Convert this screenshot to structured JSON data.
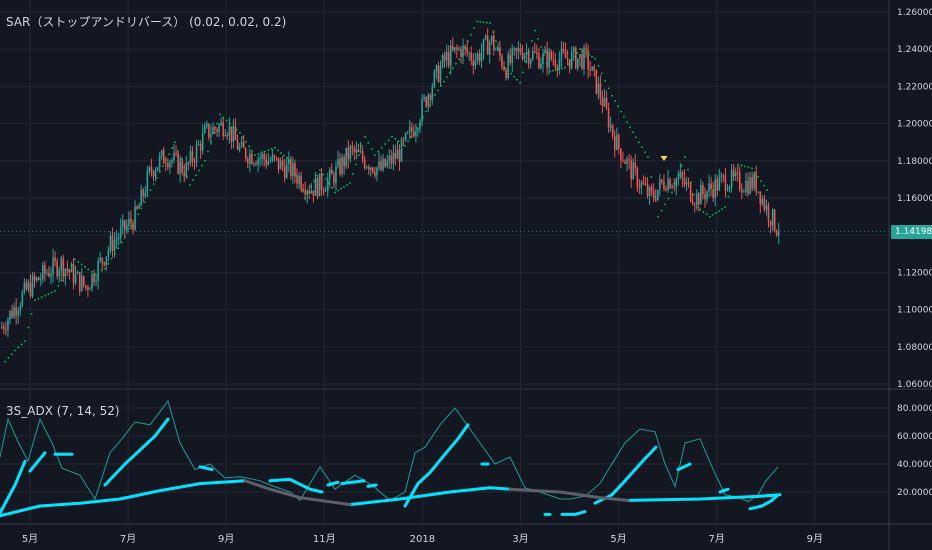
{
  "indicators": {
    "main_label": "SAR（ストップアンドリバース） (0.02, 0.02, 0.2)",
    "sub_label": "3S_ADX (7, 14, 52)"
  },
  "last_price": "1.14198",
  "colors": {
    "background": "#131722",
    "grid": "#232733",
    "up_candle": "#26a69a",
    "down_candle": "#ef5350",
    "sar_dots": "#00c853",
    "adx_thick": "#00e5ff",
    "adx_thin": "#1f9e94",
    "adx_gray": "#5d606b",
    "axis_text": "#d1d4dc",
    "marker": "#ffd54f"
  },
  "chart_data": [
    {
      "type": "candlestick",
      "title": "",
      "x_ticks": [
        "5月",
        "7月",
        "9月",
        "11月",
        "2018",
        "3月",
        "5月",
        "7月",
        "9月"
      ],
      "y_ticks": [
        "1.06000",
        "1.08000",
        "1.10000",
        "1.12000",
        "1.14000",
        "1.16000",
        "1.18000",
        "1.20000",
        "1.22000",
        "1.24000",
        "1.26000"
      ],
      "ylim": [
        1.06,
        1.26
      ],
      "last_value": 1.14198,
      "anchor_closes": [
        [
          0,
          1.09
        ],
        [
          25,
          1.11
        ],
        [
          45,
          1.12
        ],
        [
          60,
          1.125
        ],
        [
          85,
          1.112
        ],
        [
          110,
          1.135
        ],
        [
          135,
          1.15
        ],
        [
          150,
          1.175
        ],
        [
          165,
          1.183
        ],
        [
          185,
          1.175
        ],
        [
          205,
          1.195
        ],
        [
          225,
          1.2
        ],
        [
          240,
          1.185
        ],
        [
          270,
          1.18
        ],
        [
          290,
          1.175
        ],
        [
          310,
          1.165
        ],
        [
          330,
          1.17
        ],
        [
          350,
          1.185
        ],
        [
          380,
          1.175
        ],
        [
          400,
          1.185
        ],
        [
          415,
          1.2
        ],
        [
          430,
          1.22
        ],
        [
          445,
          1.235
        ],
        [
          460,
          1.24
        ],
        [
          475,
          1.235
        ],
        [
          490,
          1.245
        ],
        [
          505,
          1.23
        ],
        [
          520,
          1.24
        ],
        [
          540,
          1.235
        ],
        [
          560,
          1.235
        ],
        [
          585,
          1.235
        ],
        [
          600,
          1.215
        ],
        [
          615,
          1.19
        ],
        [
          630,
          1.175
        ],
        [
          650,
          1.16
        ],
        [
          665,
          1.17
        ],
        [
          680,
          1.17
        ],
        [
          695,
          1.16
        ],
        [
          710,
          1.165
        ],
        [
          725,
          1.17
        ],
        [
          740,
          1.168
        ],
        [
          755,
          1.168
        ],
        [
          765,
          1.155
        ],
        [
          778,
          1.142
        ]
      ],
      "sar_dots": [
        [
          5,
          1.072
        ],
        [
          15,
          1.078
        ],
        [
          25,
          1.083
        ],
        [
          35,
          1.105
        ],
        [
          55,
          1.11
        ],
        [
          75,
          1.127
        ],
        [
          95,
          1.119
        ],
        [
          105,
          1.122
        ],
        [
          115,
          1.13
        ],
        [
          135,
          1.148
        ],
        [
          160,
          1.174
        ],
        [
          175,
          1.19
        ],
        [
          190,
          1.167
        ],
        [
          205,
          1.18
        ],
        [
          220,
          1.205
        ],
        [
          240,
          1.195
        ],
        [
          255,
          1.183
        ],
        [
          275,
          1.187
        ],
        [
          290,
          1.18
        ],
        [
          305,
          1.16
        ],
        [
          320,
          1.175
        ],
        [
          335,
          1.163
        ],
        [
          350,
          1.168
        ],
        [
          365,
          1.193
        ],
        [
          375,
          1.183
        ],
        [
          392,
          1.193
        ],
        [
          405,
          1.188
        ],
        [
          420,
          1.2
        ],
        [
          432,
          1.213
        ],
        [
          447,
          1.225
        ],
        [
          462,
          1.237
        ],
        [
          477,
          1.255
        ],
        [
          490,
          1.254
        ],
        [
          505,
          1.23
        ],
        [
          520,
          1.222
        ],
        [
          535,
          1.25
        ],
        [
          550,
          1.228
        ],
        [
          565,
          1.23
        ],
        [
          580,
          1.24
        ],
        [
          595,
          1.235
        ],
        [
          612,
          1.215
        ],
        [
          630,
          1.198
        ],
        [
          648,
          1.182
        ],
        [
          658,
          1.15
        ],
        [
          672,
          1.163
        ],
        [
          685,
          1.182
        ],
        [
          697,
          1.155
        ],
        [
          710,
          1.15
        ],
        [
          725,
          1.155
        ],
        [
          738,
          1.178
        ],
        [
          752,
          1.176
        ],
        [
          770,
          1.162
        ]
      ],
      "marker": [
        664,
        1.181
      ]
    },
    {
      "type": "line",
      "title": "",
      "y_ticks": [
        "20.0000",
        "40.0000",
        "60.0000",
        "80.0000"
      ],
      "ylim": [
        0,
        90
      ],
      "series": [
        {
          "style": "thin",
          "points": [
            [
              0,
              45
            ],
            [
              8,
              72
            ],
            [
              18,
              56
            ],
            [
              28,
              42
            ],
            [
              40,
              72
            ],
            [
              52,
              55
            ],
            [
              62,
              37
            ],
            [
              80,
              32
            ],
            [
              95,
              15
            ],
            [
              110,
              48
            ],
            [
              122,
              58
            ],
            [
              135,
              70
            ],
            [
              150,
              68
            ],
            [
              168,
              85
            ],
            [
              180,
              55
            ],
            [
              195,
              36
            ],
            [
              210,
              40
            ],
            [
              225,
              30
            ],
            [
              240,
              31
            ],
            [
              260,
              28
            ],
            [
              270,
              25
            ],
            [
              290,
              20
            ],
            [
              300,
              14
            ],
            [
              320,
              38
            ],
            [
              335,
              22
            ],
            [
              355,
              32
            ],
            [
              372,
              25
            ],
            [
              390,
              14
            ],
            [
              405,
              20
            ],
            [
              415,
              48
            ],
            [
              425,
              52
            ],
            [
              440,
              68
            ],
            [
              455,
              80
            ],
            [
              465,
              70
            ],
            [
              480,
              55
            ],
            [
              495,
              40
            ],
            [
              510,
              45
            ],
            [
              525,
              23
            ],
            [
              540,
              20
            ],
            [
              560,
              15
            ],
            [
              570,
              15
            ],
            [
              585,
              17
            ],
            [
              600,
              26
            ],
            [
              610,
              38
            ],
            [
              625,
              55
            ],
            [
              640,
              65
            ],
            [
              655,
              63
            ],
            [
              665,
              40
            ],
            [
              675,
              24
            ],
            [
              685,
              55
            ],
            [
              700,
              58
            ],
            [
              712,
              38
            ],
            [
              725,
              18
            ],
            [
              740,
              16
            ],
            [
              748,
              13
            ],
            [
              758,
              18
            ],
            [
              766,
              28
            ],
            [
              778,
              38
            ]
          ]
        },
        {
          "style": "thick",
          "segments": [
            [
              [
                0,
                5
              ],
              [
                15,
                25
              ],
              [
                25,
                42
              ]
            ],
            [
              [
                30,
                35
              ],
              [
                45,
                48
              ]
            ],
            [
              [
                55,
                47
              ],
              [
                72,
                47
              ]
            ],
            [
              [
                105,
                25
              ],
              [
                125,
                40
              ],
              [
                140,
                50
              ],
              [
                155,
                60
              ],
              [
                168,
                72
              ]
            ],
            [
              [
                200,
                38
              ],
              [
                212,
                36
              ]
            ],
            [
              [
                270,
                28
              ],
              [
                290,
                29
              ],
              [
                310,
                22
              ],
              [
                322,
                20
              ]
            ],
            [
              [
                328,
                25
              ],
              [
                338,
                27
              ]
            ],
            [
              [
                342,
                26
              ],
              [
                352,
                27
              ],
              [
                364,
                28
              ]
            ],
            [
              [
                368,
                24
              ],
              [
                376,
                25
              ]
            ],
            [
              [
                405,
                10
              ],
              [
                418,
                26
              ],
              [
                430,
                34
              ],
              [
                445,
                47
              ],
              [
                458,
                58
              ],
              [
                468,
                68
              ]
            ],
            [
              [
                482,
                40
              ],
              [
                488,
                40
              ]
            ],
            [
              [
                545,
                4
              ],
              [
                550,
                4
              ]
            ],
            [
              [
                562,
                4
              ],
              [
                575,
                4
              ],
              [
                585,
                6
              ]
            ],
            [
              [
                595,
                12
              ],
              [
                612,
                18
              ],
              [
                625,
                28
              ],
              [
                640,
                40
              ],
              [
                656,
                52
              ]
            ],
            [
              [
                678,
                36
              ],
              [
                690,
                40
              ]
            ],
            [
              [
                720,
                20
              ],
              [
                728,
                22
              ]
            ],
            [
              [
                750,
                8
              ],
              [
                762,
                10
              ],
              [
                772,
                14
              ],
              [
                778,
                18
              ]
            ]
          ]
        },
        {
          "style": "thick",
          "segments": [
            [
              [
                0,
                3
              ],
              [
                40,
                10
              ],
              [
                80,
                12
              ],
              [
                120,
                15
              ],
              [
                160,
                21
              ],
              [
                200,
                26
              ],
              [
                245,
                28
              ]
            ],
            [
              [
                350,
                11
              ],
              [
                400,
                15
              ],
              [
                450,
                20
              ],
              [
                490,
                23
              ],
              [
                510,
                22
              ]
            ],
            [
              [
                628,
                14
              ],
              [
                700,
                15
              ],
              [
                760,
                17
              ],
              [
                780,
                18
              ]
            ]
          ]
        },
        {
          "style": "gray",
          "segments": [
            [
              [
                245,
                28
              ],
              [
                270,
                22
              ],
              [
                300,
                16
              ],
              [
                340,
                12
              ],
              [
                350,
                11
              ]
            ],
            [
              [
                510,
                22
              ],
              [
                560,
                20
              ],
              [
                600,
                16
              ],
              [
                628,
                14
              ]
            ]
          ]
        }
      ]
    }
  ]
}
